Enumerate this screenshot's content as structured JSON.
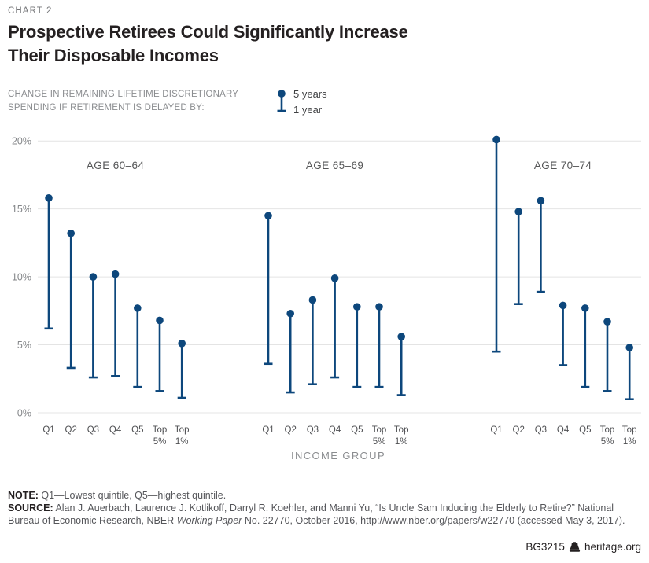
{
  "page": {
    "kicker": "CHART 2",
    "title_line1": "Prospective Retirees Could Significantly Increase",
    "title_line2": "Their Disposable Incomes",
    "subtitle_line1": "CHANGE IN REMAINING LIFETIME DISCRETIONARY",
    "subtitle_line2": "SPENDING IF RETIREMENT IS DELAYED BY:"
  },
  "legend": {
    "top": "5 years",
    "bottom": "1 year"
  },
  "chart_data": {
    "type": "lollipop-range (dot = 5 years, T-cap = 1 year)",
    "xlabel": "INCOME GROUP",
    "ylim": [
      0,
      20
    ],
    "grid": true,
    "yticks": [
      {
        "value": 20,
        "label": "20%"
      },
      {
        "value": 15,
        "label": "15%"
      },
      {
        "value": 10,
        "label": "10%"
      },
      {
        "value": 5,
        "label": "5%"
      },
      {
        "value": 0,
        "label": "0%"
      }
    ],
    "categories": [
      "Q1",
      "Q2",
      "Q3",
      "Q4",
      "Q5",
      "Top 5%",
      "Top 1%"
    ],
    "panels": [
      {
        "title": "AGE 60–64",
        "series": [
          {
            "name": "5 years",
            "values": [
              15.8,
              13.2,
              10.0,
              10.2,
              7.7,
              6.8,
              5.1
            ]
          },
          {
            "name": "1 year",
            "values": [
              6.2,
              3.3,
              2.6,
              2.7,
              1.9,
              1.6,
              1.1
            ]
          }
        ]
      },
      {
        "title": "AGE 65–69",
        "series": [
          {
            "name": "5 years",
            "values": [
              14.5,
              7.3,
              8.3,
              9.9,
              7.8,
              7.8,
              5.6
            ]
          },
          {
            "name": "1 year",
            "values": [
              3.6,
              1.5,
              2.1,
              2.6,
              1.9,
              1.9,
              1.3
            ]
          }
        ]
      },
      {
        "title": "AGE 70–74",
        "series": [
          {
            "name": "5 years",
            "values": [
              20.1,
              14.8,
              15.6,
              7.9,
              7.7,
              6.7,
              4.8
            ]
          },
          {
            "name": "1 year",
            "values": [
              4.5,
              8.0,
              8.9,
              3.5,
              1.9,
              1.6,
              1.0
            ]
          }
        ]
      }
    ],
    "colors": {
      "marker": "#0d477c",
      "grid": "#e4e4e4"
    }
  },
  "notes": {
    "note_label": "NOTE:",
    "note_text": " Q1—Lowest quintile, Q5—highest quintile.",
    "source_label": "SOURCE:",
    "source_text_1": " Alan J. Auerbach, Laurence J. Kotlikoff, Darryl R. Koehler, and Manni Yu, “Is Uncle Sam Inducing the Elderly to Retire?” National Bureau of Economic Research, NBER ",
    "source_text_italic": "Working Paper",
    "source_text_2": " No. 22770, October 2016, http://www.nber.org/papers/w22770 (accessed May 3, 2017)."
  },
  "footer": {
    "id": "BG3215",
    "site": "heritage.org"
  }
}
